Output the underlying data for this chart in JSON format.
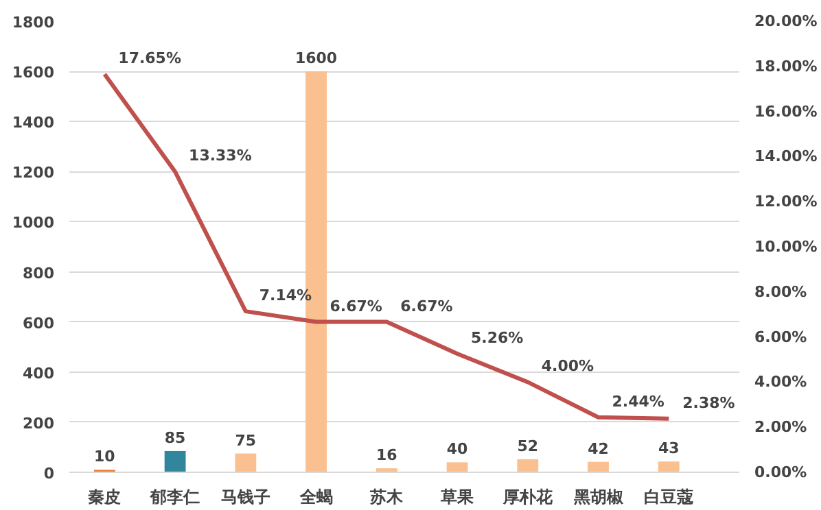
{
  "chart_data": {
    "type": "bar",
    "categories": [
      "秦皮",
      "郁李仁",
      "马钱子",
      "全蝎",
      "苏木",
      "草果",
      "厚朴花",
      "黑胡椒",
      "白豆蔻"
    ],
    "series": [
      {
        "colors": [
          "#ed7d31",
          "#31859c",
          "#fac090",
          "#fac090",
          "#fac090",
          "#fac090",
          "#fac090",
          "#fac090",
          "#fac090"
        ],
        "values": [
          10,
          85,
          75,
          1600,
          16,
          40,
          52,
          42,
          43
        ],
        "data_labels": true
      },
      {
        "type": "line",
        "axis": "y2",
        "color": "#c0504d",
        "values": [
          17.65,
          13.33,
          7.14,
          6.67,
          6.67,
          5.26,
          4.0,
          2.44,
          2.38
        ],
        "value_labels": [
          "17.65%",
          "13.33%",
          "7.14%",
          "6.67%",
          "6.67%",
          "5.26%",
          "4.00%",
          "2.44%",
          "2.38%"
        ]
      }
    ],
    "ylim": [
      0,
      1800
    ],
    "yticks": [
      0,
      200,
      400,
      600,
      800,
      1000,
      1200,
      1400,
      1600,
      1800
    ],
    "y2lim": [
      0,
      20
    ],
    "y2ticks": [
      {
        "value": 0,
        "label": "0.00%"
      },
      {
        "value": 2,
        "label": "2.00%"
      },
      {
        "value": 4,
        "label": "4.00%"
      },
      {
        "value": 6,
        "label": "6.00%"
      },
      {
        "value": 8,
        "label": "8.00%"
      },
      {
        "value": 10,
        "label": "10.00%"
      },
      {
        "value": 12,
        "label": "12.00%"
      },
      {
        "value": 14,
        "label": "14.00%"
      },
      {
        "value": 16,
        "label": "16.00%"
      },
      {
        "value": 18,
        "label": "18.00%"
      },
      {
        "value": 20,
        "label": "20.00%"
      }
    ],
    "grid": "y"
  }
}
